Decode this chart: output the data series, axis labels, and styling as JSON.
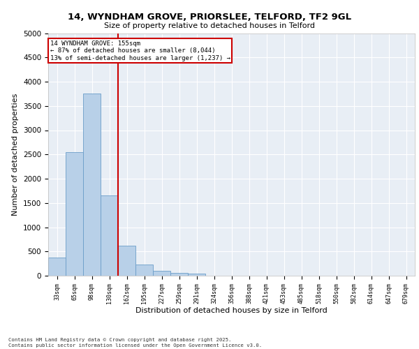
{
  "title_line1": "14, WYNDHAM GROVE, PRIORSLEE, TELFORD, TF2 9GL",
  "title_line2": "Size of property relative to detached houses in Telford",
  "xlabel": "Distribution of detached houses by size in Telford",
  "ylabel": "Number of detached properties",
  "categories": [
    "33sqm",
    "65sqm",
    "98sqm",
    "130sqm",
    "162sqm",
    "195sqm",
    "227sqm",
    "259sqm",
    "291sqm",
    "324sqm",
    "356sqm",
    "388sqm",
    "421sqm",
    "453sqm",
    "485sqm",
    "518sqm",
    "550sqm",
    "582sqm",
    "614sqm",
    "647sqm",
    "679sqm"
  ],
  "values": [
    380,
    2540,
    3760,
    1650,
    620,
    230,
    100,
    55,
    40,
    0,
    0,
    0,
    0,
    0,
    0,
    0,
    0,
    0,
    0,
    0,
    0
  ],
  "bar_color": "#b8d0e8",
  "bar_edge_color": "#6a9dc8",
  "vline_color": "#cc0000",
  "annotation_text": "14 WYNDHAM GROVE: 155sqm\n← 87% of detached houses are smaller (8,044)\n13% of semi-detached houses are larger (1,237) →",
  "annotation_box_color": "#cc0000",
  "ylim": [
    0,
    5000
  ],
  "yticks": [
    0,
    500,
    1000,
    1500,
    2000,
    2500,
    3000,
    3500,
    4000,
    4500,
    5000
  ],
  "background_color": "#e8eef5",
  "grid_color": "#ffffff",
  "footer_line1": "Contains HM Land Registry data © Crown copyright and database right 2025.",
  "footer_line2": "Contains public sector information licensed under the Open Government Licence v3.0."
}
